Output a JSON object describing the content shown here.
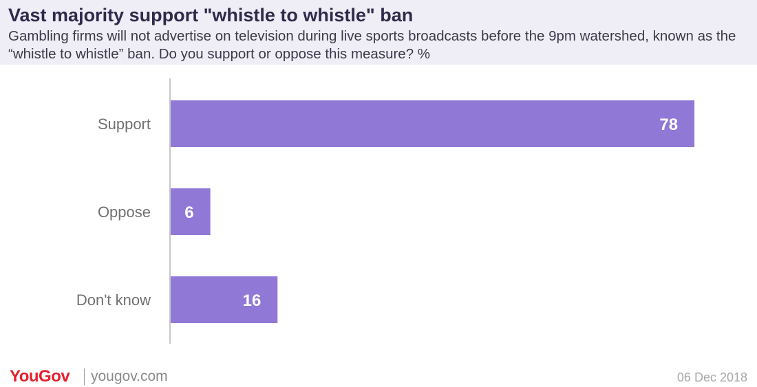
{
  "title": "Vast majority support \"whistle to whistle\" ban",
  "subtitle": "Gambling firms will not advertise on television during live sports broadcasts before the 9pm watershed, known as the “whistle to whistle” ban. Do you support or oppose this measure? %",
  "chart_data": {
    "type": "bar",
    "orientation": "horizontal",
    "categories": [
      "Support",
      "Oppose",
      "Don't know"
    ],
    "values": [
      78,
      6,
      16
    ],
    "data_labels": [
      "78",
      "6",
      "16"
    ],
    "xlim": [
      0,
      87
    ],
    "grid": false,
    "legend": "none",
    "bar_color": "#9079d6",
    "label_color": "#ffffff",
    "category_label_color": "#707070",
    "axis_color": "#c8c8c8"
  },
  "footer": {
    "brand": "YouGov",
    "url": "yougov.com",
    "date": "06 Dec 2018",
    "brand_color": "#e5202e"
  }
}
